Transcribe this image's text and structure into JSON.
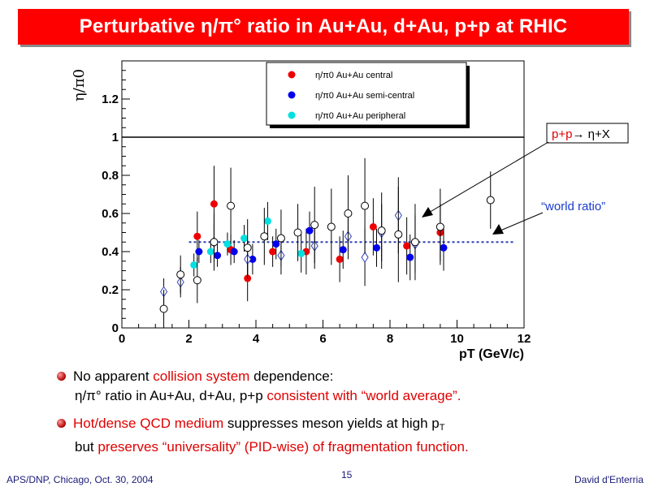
{
  "slide": {
    "title": "Perturbative η/π° ratio in Au+Au, d+Au, p+p at RHIC",
    "bullets": [
      {
        "line1_parts": [
          "No apparent ",
          "collision system",
          " dependence:"
        ],
        "line2_parts": [
          "η/π° ratio in Au+Au, d+Au, p+p ",
          "consistent with “world average”."
        ]
      },
      {
        "line1_parts": [
          "Hot/dense QCD medium",
          " suppresses meson yields at high p",
          "T"
        ],
        "line2_parts": [
          "but ",
          "preserves “universality” (PID-wise) of fragmentation function."
        ]
      }
    ],
    "footer_left": "APS/DNP, Chicago, Oct. 30, 2004",
    "page_number": "15",
    "footer_right": "David d'Enterria",
    "colors": {
      "title_bg": "#ff0000",
      "accent_red": "#e00000",
      "footer_blue": "#1a1a7a"
    }
  },
  "chart_data": {
    "type": "scatter",
    "ylabel": "η/π0",
    "xlabel": "pT (GeV/c)",
    "xlim": [
      0,
      12
    ],
    "ylim": [
      0,
      1.4
    ],
    "xticks": [
      0,
      2,
      4,
      6,
      8,
      10,
      12
    ],
    "yticks": [
      0,
      0.2,
      0.4,
      0.6,
      0.8,
      1,
      1.2
    ],
    "reference_line": 1,
    "world_ratio": 0.45,
    "legend_position": "top-center",
    "annotations": {
      "pp_label": "p+p→ η+X",
      "world_label": "“world ratio”"
    },
    "series": [
      {
        "name": "η/π0 Au+Au central",
        "marker": "filled-circle",
        "color": "#ee0000",
        "points": [
          [
            2.25,
            0.48,
            0.13
          ],
          [
            2.75,
            0.65,
            0.2
          ],
          [
            3.25,
            0.41,
            0.08
          ],
          [
            3.75,
            0.26,
            0.12
          ],
          [
            4.5,
            0.4,
            0.08
          ],
          [
            5.5,
            0.4,
            0.12
          ],
          [
            6.5,
            0.36,
            0.12
          ],
          [
            7.5,
            0.53,
            0.15
          ],
          [
            8.5,
            0.43,
            0.15
          ],
          [
            9.5,
            0.5,
            0.15
          ]
        ]
      },
      {
        "name": "η/π0 Au+Au semi-central",
        "marker": "filled-circle",
        "color": "#0000ee",
        "points": [
          [
            2.3,
            0.4,
            0.06
          ],
          [
            2.85,
            0.38,
            0.06
          ],
          [
            3.35,
            0.4,
            0.06
          ],
          [
            3.9,
            0.36,
            0.08
          ],
          [
            4.6,
            0.44,
            0.08
          ],
          [
            5.6,
            0.51,
            0.1
          ],
          [
            6.6,
            0.41,
            0.1
          ],
          [
            7.6,
            0.42,
            0.1
          ],
          [
            8.6,
            0.37,
            0.12
          ],
          [
            9.6,
            0.42,
            0.12
          ]
        ]
      },
      {
        "name": "η/π0 Au+Au peripheral",
        "marker": "filled-circle",
        "color": "#00e0e0",
        "points": [
          [
            2.15,
            0.33,
            0.06
          ],
          [
            2.65,
            0.4,
            0.06
          ],
          [
            3.15,
            0.44,
            0.06
          ],
          [
            3.65,
            0.47,
            0.07
          ],
          [
            4.35,
            0.56,
            0.1
          ],
          [
            5.35,
            0.39,
            0.1
          ]
        ]
      },
      {
        "name": "d+Au",
        "marker": "open-diamond",
        "color": "#3344bb",
        "points": [
          [
            1.25,
            0.19,
            0.07
          ],
          [
            1.75,
            0.24,
            0.08
          ],
          [
            2.75,
            0.45,
            0.1
          ],
          [
            3.75,
            0.36,
            0.1
          ],
          [
            4.75,
            0.38,
            0.1
          ],
          [
            5.75,
            0.43,
            0.12
          ],
          [
            6.75,
            0.48,
            0.12
          ],
          [
            7.25,
            0.37,
            0.15
          ],
          [
            7.75,
            0.5,
            0.15
          ],
          [
            8.25,
            0.59,
            0.2
          ],
          [
            8.75,
            0.44,
            0.15
          ]
        ]
      },
      {
        "name": "p+p",
        "marker": "open-circle",
        "color": "#000000",
        "points": [
          [
            1.25,
            0.1,
            0.1
          ],
          [
            1.75,
            0.28,
            0.1
          ],
          [
            2.25,
            0.25,
            0.12
          ],
          [
            2.75,
            0.45,
            0.15
          ],
          [
            3.25,
            0.64,
            0.2
          ],
          [
            3.75,
            0.42,
            0.15
          ],
          [
            4.25,
            0.48,
            0.15
          ],
          [
            4.75,
            0.47,
            0.15
          ],
          [
            5.25,
            0.5,
            0.15
          ],
          [
            5.75,
            0.54,
            0.2
          ],
          [
            6.25,
            0.53,
            0.2
          ],
          [
            6.75,
            0.6,
            0.2
          ],
          [
            7.25,
            0.64,
            0.25
          ],
          [
            7.75,
            0.51,
            0.2
          ],
          [
            8.25,
            0.49,
            0.25
          ],
          [
            8.75,
            0.45,
            0.2
          ],
          [
            9.5,
            0.53,
            0.2
          ],
          [
            11,
            0.67,
            0.15
          ]
        ]
      }
    ]
  }
}
